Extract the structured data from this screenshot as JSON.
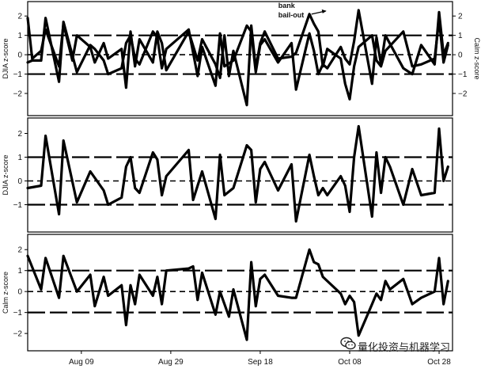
{
  "chart_data": [
    {
      "type": "line",
      "ylabel_left": "DJIA z-score",
      "ylabel_right": "Calm z-score",
      "ylim": [
        -2.9,
        2.5
      ],
      "yticks": [
        -2,
        -1,
        0,
        1,
        2
      ],
      "yticks_right": [
        -2,
        -1,
        0,
        1,
        2
      ],
      "reference_lines": [
        -1,
        0,
        1
      ],
      "x_start": "2008-07-28",
      "x_end": "2008-10-31",
      "annotation": {
        "text_line1": "bank",
        "text_line2": "bail-out",
        "date": "2008-10-03",
        "y": 2.3
      },
      "series": [
        {
          "values": [
            [
              "2008-07-28",
              1.9
            ],
            [
              "2008-07-29",
              -0.2
            ],
            [
              "2008-07-31",
              0.2
            ],
            [
              "2008-08-01",
              1.3
            ],
            [
              "2008-08-04",
              -0.6
            ],
            [
              "2008-08-05",
              1.6
            ],
            [
              "2008-08-07",
              -0.3
            ],
            [
              "2008-08-08",
              1.0
            ],
            [
              "2008-08-11",
              0.4
            ],
            [
              "2008-08-12",
              -0.4
            ],
            [
              "2008-08-14",
              0.6
            ],
            [
              "2008-08-15",
              -0.2
            ],
            [
              "2008-08-18",
              0.3
            ],
            [
              "2008-08-19",
              -1.7
            ],
            [
              "2008-08-20",
              1.2
            ],
            [
              "2008-08-21",
              -0.6
            ],
            [
              "2008-08-22",
              0.8
            ],
            [
              "2008-08-25",
              -0.4
            ],
            [
              "2008-08-26",
              1.2
            ],
            [
              "2008-08-27",
              0.6
            ],
            [
              "2008-08-28",
              -0.8
            ],
            [
              "2008-09-02",
              1.2
            ],
            [
              "2008-09-04",
              -0.3
            ],
            [
              "2008-09-05",
              0.8
            ],
            [
              "2008-09-08",
              -0.5
            ],
            [
              "2008-09-09",
              -1.2
            ],
            [
              "2008-09-10",
              1.0
            ],
            [
              "2008-09-11",
              -1.1
            ],
            [
              "2008-09-12",
              0.2
            ],
            [
              "2008-09-15",
              -2.6
            ],
            [
              "2008-09-16",
              1.5
            ],
            [
              "2008-09-17",
              -0.7
            ],
            [
              "2008-09-18",
              0.6
            ],
            [
              "2008-09-19",
              1.2
            ],
            [
              "2008-09-22",
              -0.2
            ],
            [
              "2008-09-25",
              -0.1
            ],
            [
              "2008-09-26",
              0.1
            ],
            [
              "2008-09-29",
              2.1
            ],
            [
              "2008-09-30",
              1.6
            ],
            [
              "2008-10-01",
              1.2
            ],
            [
              "2008-10-02",
              -0.6
            ],
            [
              "2008-10-03",
              0.3
            ],
            [
              "2008-10-06",
              -0.2
            ],
            [
              "2008-10-07",
              -1.5
            ],
            [
              "2008-10-08",
              -2.3
            ],
            [
              "2008-10-09",
              -0.6
            ],
            [
              "2008-10-10",
              0.4
            ],
            [
              "2008-10-13",
              1.0
            ],
            [
              "2008-10-14",
              -0.3
            ],
            [
              "2008-10-15",
              -0.6
            ],
            [
              "2008-10-16",
              0.2
            ],
            [
              "2008-10-20",
              1.2
            ],
            [
              "2008-10-22",
              -0.6
            ],
            [
              "2008-10-24",
              -0.5
            ],
            [
              "2008-10-27",
              -0.2
            ],
            [
              "2008-10-28",
              1.8
            ],
            [
              "2008-10-29",
              -0.4
            ],
            [
              "2008-10-30",
              0.5
            ]
          ]
        },
        {
          "values": [
            [
              "2008-07-28",
              -0.4
            ],
            [
              "2008-07-29",
              -0.3
            ],
            [
              "2008-07-31",
              -0.3
            ],
            [
              "2008-08-01",
              1.9
            ],
            [
              "2008-08-04",
              -1.4
            ],
            [
              "2008-08-05",
              1.7
            ],
            [
              "2008-08-08",
              -0.9
            ],
            [
              "2008-08-11",
              0.5
            ],
            [
              "2008-08-12",
              0.3
            ],
            [
              "2008-08-14",
              -0.3
            ],
            [
              "2008-08-15",
              -1.0
            ],
            [
              "2008-08-18",
              -0.7
            ],
            [
              "2008-08-19",
              0.6
            ],
            [
              "2008-08-20",
              1.0
            ],
            [
              "2008-08-21",
              -0.2
            ],
            [
              "2008-08-22",
              -0.5
            ],
            [
              "2008-08-25",
              1.2
            ],
            [
              "2008-08-26",
              0.9
            ],
            [
              "2008-08-27",
              -0.7
            ],
            [
              "2008-08-28",
              0.3
            ],
            [
              "2008-09-02",
              1.3
            ],
            [
              "2008-09-04",
              -1.1
            ],
            [
              "2008-09-05",
              0.4
            ],
            [
              "2008-09-08",
              -1.6
            ],
            [
              "2008-09-09",
              1.1
            ],
            [
              "2008-09-10",
              -0.6
            ],
            [
              "2008-09-12",
              -0.3
            ],
            [
              "2008-09-15",
              1.5
            ],
            [
              "2008-09-16",
              1.2
            ],
            [
              "2008-09-17",
              -0.9
            ],
            [
              "2008-09-18",
              0.5
            ],
            [
              "2008-09-19",
              0.8
            ],
            [
              "2008-09-22",
              -0.4
            ],
            [
              "2008-09-25",
              0.6
            ],
            [
              "2008-09-26",
              -1.8
            ],
            [
              "2008-09-29",
              1.1
            ],
            [
              "2008-09-30",
              0.2
            ],
            [
              "2008-10-01",
              -1.0
            ],
            [
              "2008-10-02",
              -0.5
            ],
            [
              "2008-10-03",
              -0.7
            ],
            [
              "2008-10-06",
              0.4
            ],
            [
              "2008-10-07",
              -0.2
            ],
            [
              "2008-10-08",
              -0.5
            ],
            [
              "2008-10-09",
              0.7
            ],
            [
              "2008-10-10",
              2.3
            ],
            [
              "2008-10-13",
              -1.5
            ],
            [
              "2008-10-14",
              0.9
            ],
            [
              "2008-10-15",
              -0.5
            ],
            [
              "2008-10-16",
              1.0
            ],
            [
              "2008-10-20",
              -0.7
            ],
            [
              "2008-10-22",
              -1.0
            ],
            [
              "2008-10-24",
              0.5
            ],
            [
              "2008-10-27",
              -0.5
            ],
            [
              "2008-10-28",
              2.2
            ],
            [
              "2008-10-29",
              0.0
            ],
            [
              "2008-10-30",
              0.6
            ]
          ]
        }
      ]
    },
    {
      "type": "line",
      "ylabel_left": "DJIA z-score",
      "ylim": [
        -1.95,
        2.45
      ],
      "yticks": [
        -1,
        0,
        1,
        2
      ],
      "reference_lines": [
        -1,
        0,
        1
      ],
      "x_start": "2008-07-28",
      "x_end": "2008-10-31",
      "series": [
        {
          "values": [
            [
              "2008-07-28",
              -0.3
            ],
            [
              "2008-07-31",
              -0.2
            ],
            [
              "2008-08-01",
              1.9
            ],
            [
              "2008-08-04",
              -1.4
            ],
            [
              "2008-08-05",
              1.7
            ],
            [
              "2008-08-08",
              -0.9
            ],
            [
              "2008-08-11",
              0.4
            ],
            [
              "2008-08-14",
              -0.4
            ],
            [
              "2008-08-15",
              -1.0
            ],
            [
              "2008-08-18",
              -0.7
            ],
            [
              "2008-08-19",
              0.6
            ],
            [
              "2008-08-20",
              1.0
            ],
            [
              "2008-08-21",
              -0.3
            ],
            [
              "2008-08-22",
              -0.5
            ],
            [
              "2008-08-25",
              1.2
            ],
            [
              "2008-08-26",
              0.9
            ],
            [
              "2008-08-27",
              -0.6
            ],
            [
              "2008-08-28",
              0.2
            ],
            [
              "2008-09-02",
              1.3
            ],
            [
              "2008-09-03",
              -0.8
            ],
            [
              "2008-09-05",
              0.4
            ],
            [
              "2008-09-08",
              -1.6
            ],
            [
              "2008-09-09",
              1.1
            ],
            [
              "2008-09-10",
              -0.6
            ],
            [
              "2008-09-12",
              -0.3
            ],
            [
              "2008-09-15",
              1.5
            ],
            [
              "2008-09-16",
              1.3
            ],
            [
              "2008-09-17",
              -0.9
            ],
            [
              "2008-09-18",
              0.5
            ],
            [
              "2008-09-19",
              0.8
            ],
            [
              "2008-09-22",
              -0.4
            ],
            [
              "2008-09-25",
              0.7
            ],
            [
              "2008-09-26",
              -1.7
            ],
            [
              "2008-09-29",
              1.1
            ],
            [
              "2008-09-30",
              0.2
            ],
            [
              "2008-10-01",
              -0.6
            ],
            [
              "2008-10-02",
              -0.3
            ],
            [
              "2008-10-03",
              -0.6
            ],
            [
              "2008-10-06",
              0.2
            ],
            [
              "2008-10-07",
              -0.2
            ],
            [
              "2008-10-08",
              -1.3
            ],
            [
              "2008-10-09",
              1.0
            ],
            [
              "2008-10-10",
              2.3
            ],
            [
              "2008-10-13",
              -1.5
            ],
            [
              "2008-10-14",
              1.2
            ],
            [
              "2008-10-15",
              -0.5
            ],
            [
              "2008-10-16",
              1.0
            ],
            [
              "2008-10-17",
              0.6
            ],
            [
              "2008-10-20",
              -1.0
            ],
            [
              "2008-10-22",
              0.5
            ],
            [
              "2008-10-24",
              -0.6
            ],
            [
              "2008-10-27",
              -0.5
            ],
            [
              "2008-10-28",
              2.2
            ],
            [
              "2008-10-29",
              0.0
            ],
            [
              "2008-10-30",
              0.6
            ]
          ]
        }
      ]
    },
    {
      "type": "line",
      "ylabel_left": "Calm z-score",
      "ylim": [
        -2.6,
        2.5
      ],
      "yticks": [
        -2,
        -1,
        0,
        1,
        2
      ],
      "reference_lines": [
        -1,
        0,
        1
      ],
      "x_start": "2008-07-28",
      "x_end": "2008-10-31",
      "xticks": [
        "Aug 09",
        "Aug 29",
        "Sep 18",
        "Oct 08",
        "Oct 28"
      ],
      "series": [
        {
          "values": [
            [
              "2008-07-28",
              1.7
            ],
            [
              "2008-07-31",
              0.1
            ],
            [
              "2008-08-01",
              1.6
            ],
            [
              "2008-08-04",
              -0.3
            ],
            [
              "2008-08-05",
              1.7
            ],
            [
              "2008-08-08",
              0.0
            ],
            [
              "2008-08-11",
              0.8
            ],
            [
              "2008-08-12",
              -0.7
            ],
            [
              "2008-08-14",
              0.7
            ],
            [
              "2008-08-15",
              -0.2
            ],
            [
              "2008-08-18",
              0.3
            ],
            [
              "2008-08-19",
              -1.6
            ],
            [
              "2008-08-20",
              0.3
            ],
            [
              "2008-08-21",
              -0.6
            ],
            [
              "2008-08-22",
              0.8
            ],
            [
              "2008-08-25",
              -0.2
            ],
            [
              "2008-08-26",
              0.7
            ],
            [
              "2008-08-27",
              -0.6
            ],
            [
              "2008-08-28",
              1.0
            ],
            [
              "2008-09-02",
              1.1
            ],
            [
              "2008-09-03",
              1.2
            ],
            [
              "2008-09-04",
              -0.4
            ],
            [
              "2008-09-05",
              0.9
            ],
            [
              "2008-09-08",
              -1.1
            ],
            [
              "2008-09-09",
              0.0
            ],
            [
              "2008-09-11",
              -1.2
            ],
            [
              "2008-09-12",
              0.1
            ],
            [
              "2008-09-15",
              -2.3
            ],
            [
              "2008-09-16",
              1.4
            ],
            [
              "2008-09-17",
              -0.7
            ],
            [
              "2008-09-18",
              0.6
            ],
            [
              "2008-09-19",
              0.8
            ],
            [
              "2008-09-22",
              -0.2
            ],
            [
              "2008-09-25",
              -0.3
            ],
            [
              "2008-09-26",
              -0.3
            ],
            [
              "2008-09-29",
              2.0
            ],
            [
              "2008-09-30",
              1.4
            ],
            [
              "2008-10-01",
              1.3
            ],
            [
              "2008-10-02",
              0.7
            ],
            [
              "2008-10-03",
              0.5
            ],
            [
              "2008-10-06",
              -0.1
            ],
            [
              "2008-10-07",
              -0.6
            ],
            [
              "2008-10-08",
              -0.2
            ],
            [
              "2008-10-09",
              -0.5
            ],
            [
              "2008-10-10",
              -2.1
            ],
            [
              "2008-10-13",
              -0.6
            ],
            [
              "2008-10-14",
              -0.1
            ],
            [
              "2008-10-15",
              -0.4
            ],
            [
              "2008-10-16",
              0.5
            ],
            [
              "2008-10-17",
              0.1
            ],
            [
              "2008-10-20",
              0.6
            ],
            [
              "2008-10-22",
              -0.6
            ],
            [
              "2008-10-24",
              -0.3
            ],
            [
              "2008-10-27",
              0.0
            ],
            [
              "2008-10-28",
              1.6
            ],
            [
              "2008-10-29",
              -0.6
            ],
            [
              "2008-10-30",
              0.5
            ]
          ]
        }
      ]
    }
  ],
  "watermark": {
    "icon": "wechat-icon",
    "text": "量化投资与机器学习"
  },
  "colors": {
    "line": "#000000",
    "axis": "#000000",
    "background": "#ffffff"
  }
}
